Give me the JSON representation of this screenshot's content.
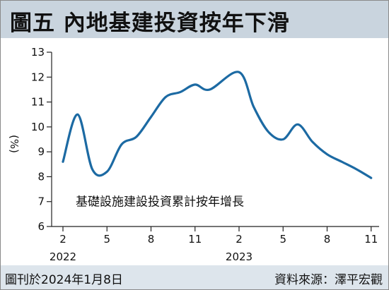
{
  "header": {
    "title": "圖五  內地基建投資按年下滑"
  },
  "footer": {
    "date": "圖刊於2024年1月8日",
    "source": "資料來源：澤平宏觀"
  },
  "colors": {
    "line": "#1c6aa3",
    "title_bg": "#c9d4de",
    "footer_bg": "#dde5ec"
  },
  "chart_data": {
    "type": "line",
    "title": "圖五  內地基建投資按年下滑",
    "ylabel": "(%)",
    "xlabel": "",
    "annotation": "基礎設施建設投資累計按年增長",
    "ylim": [
      6,
      13
    ],
    "yticks": [
      "6",
      "7",
      "8",
      "9",
      "10",
      "11",
      "12",
      "13"
    ],
    "xticks": [
      "2",
      "5",
      "8",
      "11",
      "2",
      "5",
      "8",
      "11"
    ],
    "year_labels": [
      "2022",
      "2023"
    ],
    "grid": false,
    "series": [
      {
        "x": [
          "2022-02",
          "2022-03",
          "2022-04",
          "2022-05",
          "2022-06",
          "2022-07",
          "2022-08",
          "2022-09",
          "2022-10",
          "2022-11",
          "2022-12",
          "2023-02",
          "2023-03",
          "2023-04",
          "2023-05",
          "2023-06",
          "2023-07",
          "2023-08",
          "2023-09",
          "2023-10",
          "2023-11"
        ],
        "values": [
          8.6,
          10.5,
          8.3,
          8.2,
          9.3,
          9.6,
          10.4,
          11.2,
          11.4,
          11.7,
          11.5,
          12.2,
          10.8,
          9.8,
          9.5,
          10.1,
          9.4,
          8.9,
          8.6,
          8.3,
          7.95
        ]
      }
    ]
  }
}
